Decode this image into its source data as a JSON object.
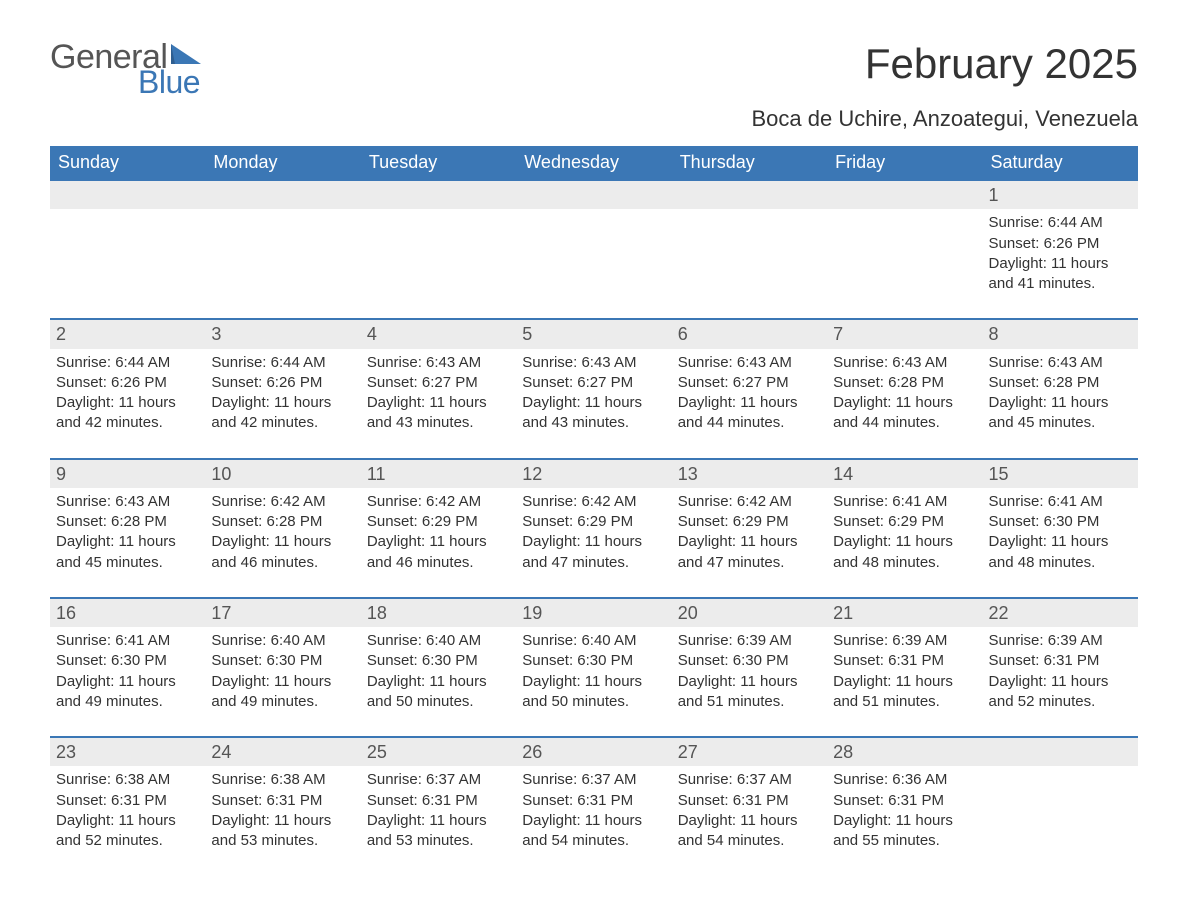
{
  "logo": {
    "general": "General",
    "blue": "Blue",
    "accent": "#3b77b5"
  },
  "title": "February 2025",
  "location": "Boca de Uchire, Anzoategui, Venezuela",
  "colors": {
    "header_bg": "#3b77b5",
    "header_fg": "#ffffff",
    "daynum_bg": "#ececec",
    "divider": "#3b77b5",
    "text": "#333333",
    "background": "#ffffff"
  },
  "day_headers": [
    "Sunday",
    "Monday",
    "Tuesday",
    "Wednesday",
    "Thursday",
    "Friday",
    "Saturday"
  ],
  "weeks": [
    [
      null,
      null,
      null,
      null,
      null,
      null,
      {
        "n": "1",
        "sr": "Sunrise: 6:44 AM",
        "ss": "Sunset: 6:26 PM",
        "dl1": "Daylight: 11 hours",
        "dl2": "and 41 minutes."
      }
    ],
    [
      {
        "n": "2",
        "sr": "Sunrise: 6:44 AM",
        "ss": "Sunset: 6:26 PM",
        "dl1": "Daylight: 11 hours",
        "dl2": "and 42 minutes."
      },
      {
        "n": "3",
        "sr": "Sunrise: 6:44 AM",
        "ss": "Sunset: 6:26 PM",
        "dl1": "Daylight: 11 hours",
        "dl2": "and 42 minutes."
      },
      {
        "n": "4",
        "sr": "Sunrise: 6:43 AM",
        "ss": "Sunset: 6:27 PM",
        "dl1": "Daylight: 11 hours",
        "dl2": "and 43 minutes."
      },
      {
        "n": "5",
        "sr": "Sunrise: 6:43 AM",
        "ss": "Sunset: 6:27 PM",
        "dl1": "Daylight: 11 hours",
        "dl2": "and 43 minutes."
      },
      {
        "n": "6",
        "sr": "Sunrise: 6:43 AM",
        "ss": "Sunset: 6:27 PM",
        "dl1": "Daylight: 11 hours",
        "dl2": "and 44 minutes."
      },
      {
        "n": "7",
        "sr": "Sunrise: 6:43 AM",
        "ss": "Sunset: 6:28 PM",
        "dl1": "Daylight: 11 hours",
        "dl2": "and 44 minutes."
      },
      {
        "n": "8",
        "sr": "Sunrise: 6:43 AM",
        "ss": "Sunset: 6:28 PM",
        "dl1": "Daylight: 11 hours",
        "dl2": "and 45 minutes."
      }
    ],
    [
      {
        "n": "9",
        "sr": "Sunrise: 6:43 AM",
        "ss": "Sunset: 6:28 PM",
        "dl1": "Daylight: 11 hours",
        "dl2": "and 45 minutes."
      },
      {
        "n": "10",
        "sr": "Sunrise: 6:42 AM",
        "ss": "Sunset: 6:28 PM",
        "dl1": "Daylight: 11 hours",
        "dl2": "and 46 minutes."
      },
      {
        "n": "11",
        "sr": "Sunrise: 6:42 AM",
        "ss": "Sunset: 6:29 PM",
        "dl1": "Daylight: 11 hours",
        "dl2": "and 46 minutes."
      },
      {
        "n": "12",
        "sr": "Sunrise: 6:42 AM",
        "ss": "Sunset: 6:29 PM",
        "dl1": "Daylight: 11 hours",
        "dl2": "and 47 minutes."
      },
      {
        "n": "13",
        "sr": "Sunrise: 6:42 AM",
        "ss": "Sunset: 6:29 PM",
        "dl1": "Daylight: 11 hours",
        "dl2": "and 47 minutes."
      },
      {
        "n": "14",
        "sr": "Sunrise: 6:41 AM",
        "ss": "Sunset: 6:29 PM",
        "dl1": "Daylight: 11 hours",
        "dl2": "and 48 minutes."
      },
      {
        "n": "15",
        "sr": "Sunrise: 6:41 AM",
        "ss": "Sunset: 6:30 PM",
        "dl1": "Daylight: 11 hours",
        "dl2": "and 48 minutes."
      }
    ],
    [
      {
        "n": "16",
        "sr": "Sunrise: 6:41 AM",
        "ss": "Sunset: 6:30 PM",
        "dl1": "Daylight: 11 hours",
        "dl2": "and 49 minutes."
      },
      {
        "n": "17",
        "sr": "Sunrise: 6:40 AM",
        "ss": "Sunset: 6:30 PM",
        "dl1": "Daylight: 11 hours",
        "dl2": "and 49 minutes."
      },
      {
        "n": "18",
        "sr": "Sunrise: 6:40 AM",
        "ss": "Sunset: 6:30 PM",
        "dl1": "Daylight: 11 hours",
        "dl2": "and 50 minutes."
      },
      {
        "n": "19",
        "sr": "Sunrise: 6:40 AM",
        "ss": "Sunset: 6:30 PM",
        "dl1": "Daylight: 11 hours",
        "dl2": "and 50 minutes."
      },
      {
        "n": "20",
        "sr": "Sunrise: 6:39 AM",
        "ss": "Sunset: 6:30 PM",
        "dl1": "Daylight: 11 hours",
        "dl2": "and 51 minutes."
      },
      {
        "n": "21",
        "sr": "Sunrise: 6:39 AM",
        "ss": "Sunset: 6:31 PM",
        "dl1": "Daylight: 11 hours",
        "dl2": "and 51 minutes."
      },
      {
        "n": "22",
        "sr": "Sunrise: 6:39 AM",
        "ss": "Sunset: 6:31 PM",
        "dl1": "Daylight: 11 hours",
        "dl2": "and 52 minutes."
      }
    ],
    [
      {
        "n": "23",
        "sr": "Sunrise: 6:38 AM",
        "ss": "Sunset: 6:31 PM",
        "dl1": "Daylight: 11 hours",
        "dl2": "and 52 minutes."
      },
      {
        "n": "24",
        "sr": "Sunrise: 6:38 AM",
        "ss": "Sunset: 6:31 PM",
        "dl1": "Daylight: 11 hours",
        "dl2": "and 53 minutes."
      },
      {
        "n": "25",
        "sr": "Sunrise: 6:37 AM",
        "ss": "Sunset: 6:31 PM",
        "dl1": "Daylight: 11 hours",
        "dl2": "and 53 minutes."
      },
      {
        "n": "26",
        "sr": "Sunrise: 6:37 AM",
        "ss": "Sunset: 6:31 PM",
        "dl1": "Daylight: 11 hours",
        "dl2": "and 54 minutes."
      },
      {
        "n": "27",
        "sr": "Sunrise: 6:37 AM",
        "ss": "Sunset: 6:31 PM",
        "dl1": "Daylight: 11 hours",
        "dl2": "and 54 minutes."
      },
      {
        "n": "28",
        "sr": "Sunrise: 6:36 AM",
        "ss": "Sunset: 6:31 PM",
        "dl1": "Daylight: 11 hours",
        "dl2": "and 55 minutes."
      },
      null
    ]
  ]
}
